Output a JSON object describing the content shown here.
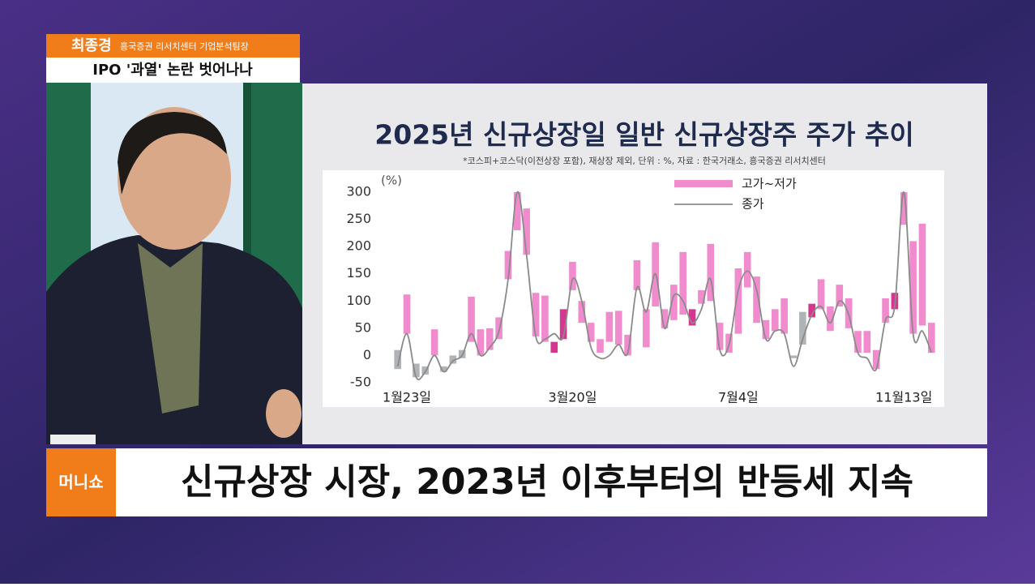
{
  "overlay": {
    "name": "최종경",
    "position": "흥국증권 리서치센터 기업분석팀장",
    "headline": "IPO '과열' 논란 벗어나나",
    "logo": "머니쇼",
    "caption": "신규상장 시장, 2023년 이후부터의 반등세 지속"
  },
  "chart_data": {
    "type": "range-bar-line",
    "title": "2025년 신규상장일 일반 신규상장주 주가 추이",
    "subtitle": "*코스피+코스닥(이전상장 포함), 재상장 제외, 단위 : %, 자료 : 한국거래소, 흥국증권 리서치센터",
    "y_unit": "(%)",
    "categories": [
      null,
      "1월23일",
      null,
      null,
      null,
      null,
      null,
      null,
      null,
      null,
      null,
      null,
      null,
      null,
      null,
      null,
      null,
      null,
      null,
      "3월20일",
      null,
      null,
      null,
      null,
      null,
      null,
      null,
      null,
      null,
      null,
      null,
      null,
      null,
      null,
      null,
      null,
      null,
      "7월4일",
      null,
      null,
      null,
      null,
      null,
      null,
      null,
      null,
      null,
      null,
      null,
      null,
      null,
      null,
      null,
      null,
      null,
      "11월13일",
      null,
      null,
      null
    ],
    "series": [
      {
        "name": "고가~저가",
        "color": "#f08ccd",
        "low": [
          -25,
          40,
          -40,
          -35,
          0,
          -30,
          -15,
          -5,
          25,
          0,
          10,
          30,
          140,
          230,
          185,
          35,
          25,
          5,
          30,
          120,
          60,
          25,
          5,
          25,
          20,
          0,
          120,
          15,
          90,
          50,
          65,
          75,
          55,
          95,
          100,
          10,
          5,
          40,
          125,
          60,
          30,
          45,
          40,
          -5,
          20,
          70,
          85,
          45,
          90,
          50,
          5,
          5,
          -25,
          60,
          85,
          240,
          40,
          55,
          5
        ],
        "high": [
          10,
          112,
          -15,
          -20,
          48,
          -20,
          0,
          10,
          108,
          48,
          50,
          70,
          192,
          300,
          270,
          115,
          110,
          25,
          85,
          172,
          100,
          60,
          30,
          80,
          82,
          38,
          175,
          85,
          208,
          85,
          130,
          190,
          85,
          120,
          205,
          60,
          40,
          160,
          190,
          145,
          65,
          85,
          105,
          0,
          80,
          95,
          140,
          90,
          130,
          105,
          45,
          45,
          10,
          105,
          115,
          300,
          210,
          242,
          60
        ],
        "colors": [
          "#b0b4b6",
          "#f08ccd",
          "#b0b4b6",
          "#b0b4b6",
          "#f08ccd",
          "#b0b4b6",
          "#b0b4b6",
          "#b0b4b6",
          "#f08ccd",
          "#f08ccd",
          "#f08ccd",
          "#f08ccd",
          "#f08ccd",
          "#f08ccd",
          "#f08ccd",
          "#f08ccd",
          "#f08ccd",
          "#d6378e",
          "#d6378e",
          "#f08ccd",
          "#f08ccd",
          "#f08ccd",
          "#f08ccd",
          "#f08ccd",
          "#f08ccd",
          "#f08ccd",
          "#f08ccd",
          "#f08ccd",
          "#f08ccd",
          "#f08ccd",
          "#f08ccd",
          "#f08ccd",
          "#d6378e",
          "#f08ccd",
          "#f08ccd",
          "#f08ccd",
          "#f08ccd",
          "#f08ccd",
          "#f08ccd",
          "#f08ccd",
          "#f08ccd",
          "#f08ccd",
          "#f08ccd",
          "#b0b4b6",
          "#b0b4b6",
          "#d6378e",
          "#f08ccd",
          "#f08ccd",
          "#f08ccd",
          "#f08ccd",
          "#f08ccd",
          "#f08ccd",
          "#f08ccd",
          "#f08ccd",
          "#d6378e",
          "#f08ccd",
          "#f08ccd",
          "#f08ccd",
          "#f08ccd"
        ]
      },
      {
        "name": "종가",
        "color": "#8a8a8a",
        "values": [
          -20,
          40,
          -40,
          -30,
          0,
          -30,
          -10,
          0,
          40,
          0,
          15,
          45,
          140,
          300,
          185,
          35,
          30,
          40,
          35,
          140,
          100,
          15,
          -5,
          0,
          20,
          5,
          125,
          80,
          150,
          50,
          110,
          100,
          60,
          85,
          140,
          10,
          20,
          120,
          155,
          120,
          30,
          45,
          40,
          -20,
          30,
          75,
          90,
          60,
          100,
          75,
          5,
          -5,
          -25,
          65,
          90,
          300,
          40,
          45,
          5
        ]
      }
    ],
    "ylim": [
      -50,
      300
    ],
    "yticks": [
      -50,
      0,
      50,
      100,
      150,
      200,
      250,
      300
    ],
    "grid": false,
    "legend": "top"
  }
}
